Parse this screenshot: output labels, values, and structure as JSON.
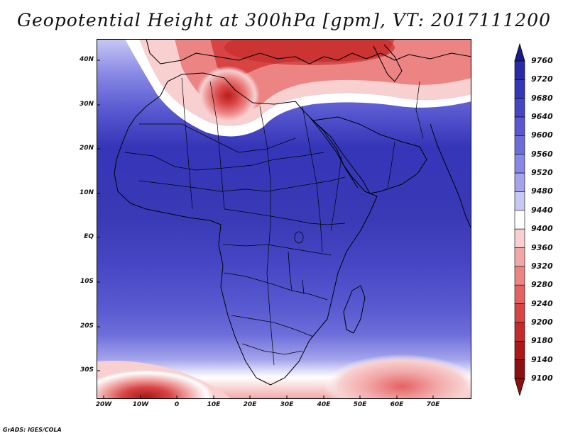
{
  "title": "Geopotential Height at 300hPa [gpm], VT: 2017111200",
  "credit": "GrADS: IGES/COLA",
  "map": {
    "region": "Africa / Arabia",
    "variable": "Geopotential Height at 300hPa",
    "units": "gpm",
    "valid_time": "2017111200",
    "lat_labels": [
      "40N",
      "30N",
      "20N",
      "10N",
      "EQ",
      "10S",
      "20S",
      "30S"
    ],
    "lon_labels": [
      "20W",
      "10W",
      "0",
      "10E",
      "20E",
      "30E",
      "40E",
      "50E",
      "60E",
      "70E"
    ],
    "features": {
      "high_band": "deep blue heights (9640-9720 gpm) across the tropics",
      "low_north": "red trough over North Africa and the Mediterranean near 30N 12E",
      "low_southwest": "red low in the South Atlantic near 35S 10W",
      "low_southeast": "pink low in the southern Indian Ocean near 33S 62E"
    }
  },
  "colorbar": {
    "levels": [
      "9760",
      "9720",
      "9680",
      "9640",
      "9600",
      "9560",
      "9520",
      "9480",
      "9440",
      "9400",
      "9360",
      "9320",
      "9280",
      "9240",
      "9200",
      "9180",
      "9140",
      "9100"
    ],
    "colors": [
      "#1a1a8c",
      "#2a2aa8",
      "#3535b8",
      "#4646c4",
      "#5858d0",
      "#6d6dda",
      "#8787e4",
      "#a4a4ec",
      "#c8c8f4",
      "#ffffff",
      "#f8d0d0",
      "#f2a8a8",
      "#ec8484",
      "#e46262",
      "#d84444",
      "#c42a2a",
      "#aa1818",
      "#8c1010"
    ]
  }
}
